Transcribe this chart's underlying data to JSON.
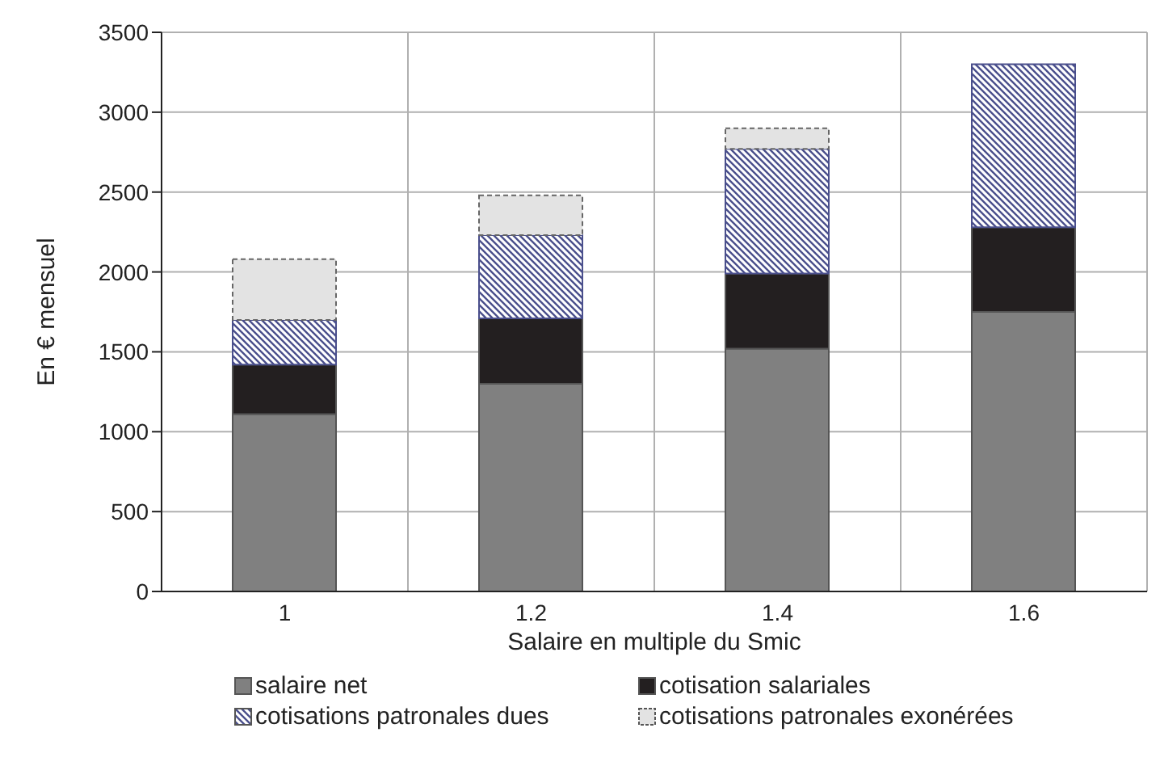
{
  "chart_data": {
    "type": "bar",
    "stacked": true,
    "xlabel": "Salaire en multiple du Smic",
    "ylabel": "En € mensuel",
    "categories": [
      "1",
      "1.2",
      "1.4",
      "1.6"
    ],
    "series": [
      {
        "name": "salaire net",
        "color": "#808080",
        "values": [
          1110,
          1300,
          1520,
          1750
        ]
      },
      {
        "name": "cotisation salariales",
        "color": "#231f20",
        "values": [
          310,
          410,
          470,
          530
        ]
      },
      {
        "name": "cotisations patronales dues",
        "color": "#4a4f8c",
        "values": [
          280,
          520,
          780,
          1020
        ]
      },
      {
        "name": "cotisations patronales exonérées",
        "color": "#e3e3e3",
        "values": [
          380,
          250,
          130,
          0
        ]
      }
    ],
    "ylim": [
      0,
      3500
    ],
    "yticks": [
      0,
      500,
      1000,
      1500,
      2000,
      2500,
      3000,
      3500
    ],
    "grid": true,
    "legend": "bottom"
  }
}
